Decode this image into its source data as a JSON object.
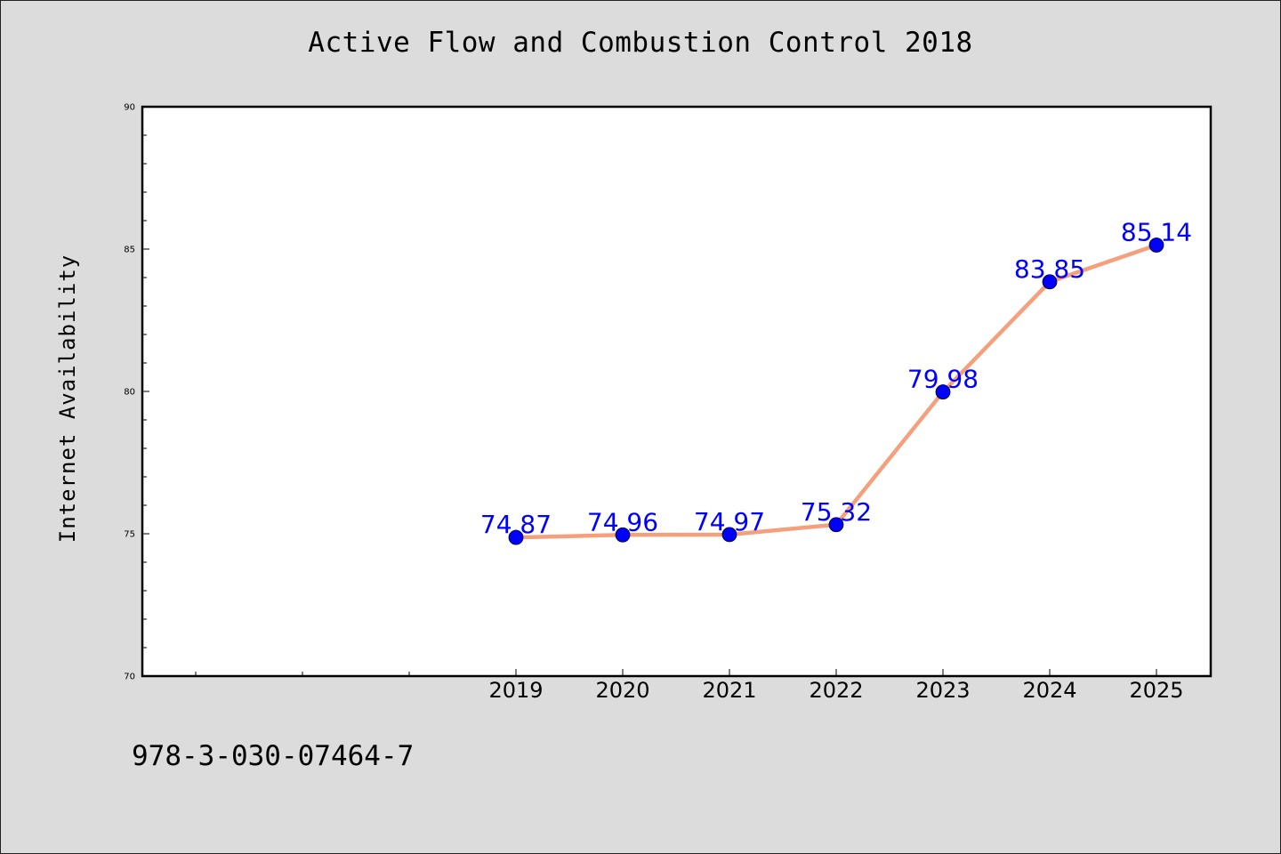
{
  "chart_data": {
    "type": "line",
    "title": "Active Flow and Combustion Control 2018",
    "ylabel": "Internet Availability",
    "xlabel": "",
    "categories": [
      "2019",
      "2020",
      "2021",
      "2022",
      "2023",
      "2024",
      "2025"
    ],
    "values": [
      74.87,
      74.96,
      74.97,
      75.32,
      79.98,
      83.85,
      85.14
    ],
    "value_labels": [
      "74.87",
      "74.96",
      "74.97",
      "75.32",
      "79.98",
      "83.85",
      "85.14"
    ],
    "ylim": [
      70,
      90
    ],
    "yticks": [
      70,
      75,
      80,
      85,
      90
    ],
    "grid": false,
    "legend": "none",
    "colors": {
      "line": "#f4a07c",
      "marker": "#0000ff",
      "labels": "#0000ff",
      "plot_background": "#ffffff",
      "figure_background": "#dcdcdc"
    }
  },
  "footer_text": "978-3-030-07464-7"
}
